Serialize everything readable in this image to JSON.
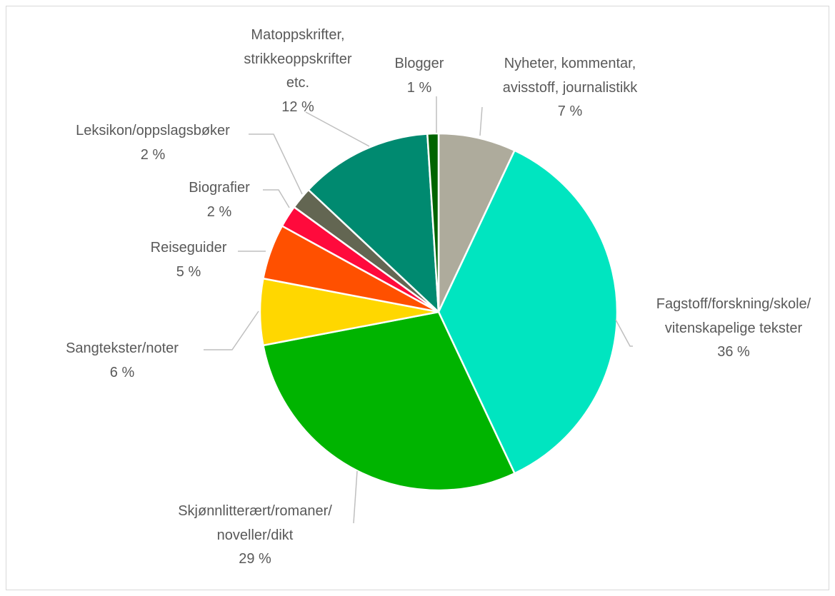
{
  "chart_data": {
    "type": "pie",
    "categories": [
      "Nyheter, kommentar,\navisstoff, journalistikk",
      "Fagstoff/forskning/skole/\nvitenskapelige tekster",
      "Skjønnlitterært/romaner/\nnoveller/dikt",
      "Sangtekster/noter",
      "Reiseguider",
      "Biografier",
      "Leksikon/oppslagsbøker",
      "Matoppskrifter,\nstrikkeoppskrifter\netc.",
      "Blogger"
    ],
    "values": [
      7,
      36,
      29,
      6,
      5,
      2,
      2,
      12,
      1
    ],
    "value_labels": [
      "7 %",
      "36 %",
      "29 %",
      "6 %",
      "5 %",
      "2 %",
      "2 %",
      "12 %",
      "1 %"
    ],
    "colors": [
      "#aeab9c",
      "#00e5c0",
      "#00b400",
      "#ffd700",
      "#ff5000",
      "#ff0a3c",
      "#636652",
      "#008a70",
      "#006400"
    ]
  }
}
